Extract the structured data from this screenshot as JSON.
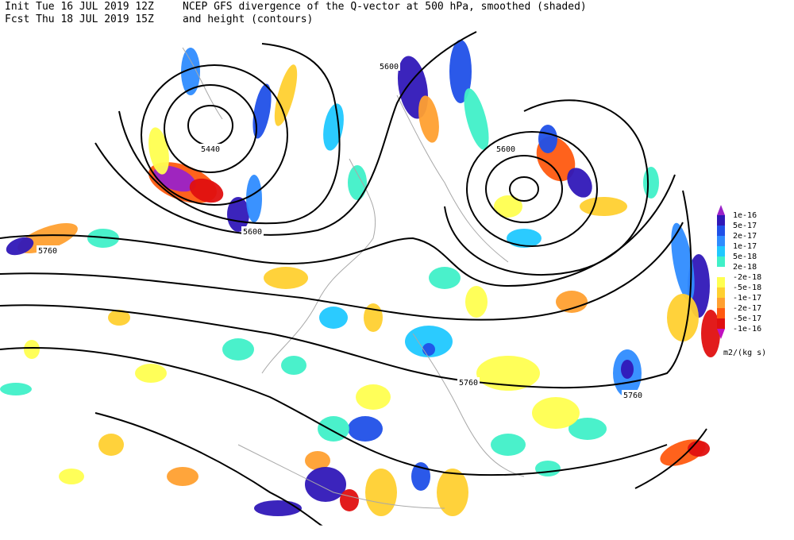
{
  "header": {
    "init": "Init  Tue 16 JUL 2019 12Z",
    "title": "NCEP GFS divergence of the Q-vector at 500 hPa, smoothed (shaded)",
    "forecast": "Fcst Thu 18 JUL 2019 15Z",
    "subtitle": "and height (contours)"
  },
  "contour_labels": [
    5440,
    5600,
    5600,
    5600,
    5760,
    5760,
    5760
  ],
  "colorbar": {
    "labels": [
      "1e-16",
      "5e-17",
      "2e-17",
      "1e-17",
      "5e-18",
      "2e-18",
      "-2e-18",
      "-5e-18",
      "-1e-17",
      "-2e-17",
      "-5e-17",
      "-1e-16"
    ],
    "colors": [
      "#9a22c8",
      "#3018b8",
      "#2050e8",
      "#2f8cff",
      "#20c8ff",
      "#40f0c8",
      "#ffffff",
      "#ffff50",
      "#ffd030",
      "#ffa030",
      "#ff5a10",
      "#e01010",
      "#c010c0"
    ],
    "unit": "m2/(kg s)"
  }
}
